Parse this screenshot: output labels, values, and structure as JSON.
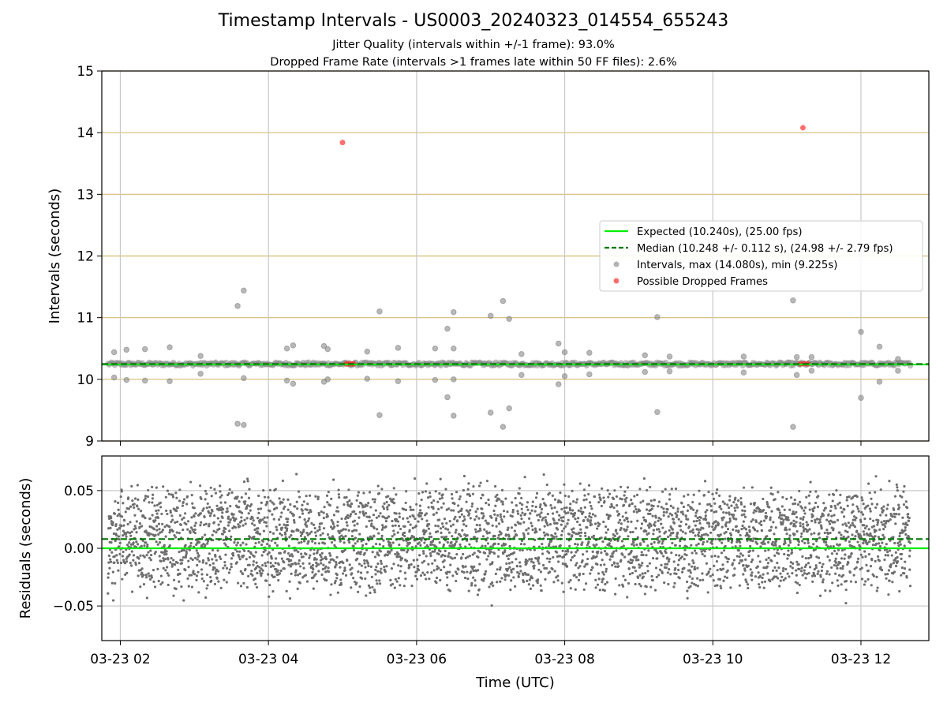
{
  "title": "Timestamp Intervals - US0003_20240323_014554_655243",
  "subtitle_1": "Jitter Quality (intervals within +/-1 frame): 93.0%",
  "subtitle_2": "Dropped Frame Rate (intervals >1 frames late within 50 FF files): 2.6%",
  "colors": {
    "expected": "#00ee00",
    "median": "#007700",
    "intervals": "#888888",
    "dropped": "#ff2222",
    "residual_points": "#6e6e6e",
    "band_grid": "#d4bc70",
    "grid": "#c8c8c8"
  },
  "chart_data": [
    {
      "type": "scatter",
      "panel": "top",
      "ylabel": "Intervals (seconds)",
      "ylim": [
        9,
        15
      ],
      "yticks": [
        "9",
        "10",
        "11",
        "12",
        "13",
        "14",
        "15"
      ],
      "x_range": [
        "2024-03-23 01:45",
        "2024-03-23 12:55"
      ],
      "x_gridlines": [
        "03-23 02",
        "03-23 04",
        "03-23 06",
        "03-23 08",
        "03-23 10",
        "03-23 12"
      ],
      "horizontal_band_lines": [
        9,
        10,
        11,
        12,
        13,
        14,
        15
      ],
      "legend_position": "center-right",
      "lines": [
        {
          "name": "Expected (10.240s), (25.00 fps)",
          "y": 10.24,
          "style": "solid"
        },
        {
          "name": "Median (10.248 +/- 0.112 s), (24.98 +/- 2.79 fps)",
          "y": 10.248,
          "style": "dashed"
        }
      ],
      "series": [
        {
          "name": "Intervals, max (14.080s), min (9.225s)",
          "baseline_band": [
            10.19,
            10.3
          ],
          "outliers": [
            {
              "x": "03-23 01:55",
              "y": 10.44
            },
            {
              "x": "03-23 01:55",
              "y": 10.03
            },
            {
              "x": "03-23 02:05",
              "y": 10.48
            },
            {
              "x": "03-23 02:05",
              "y": 9.99
            },
            {
              "x": "03-23 02:20",
              "y": 10.49
            },
            {
              "x": "03-23 02:20",
              "y": 9.98
            },
            {
              "x": "03-23 02:40",
              "y": 10.52
            },
            {
              "x": "03-23 02:40",
              "y": 9.97
            },
            {
              "x": "03-23 03:05",
              "y": 10.38
            },
            {
              "x": "03-23 03:05",
              "y": 10.09
            },
            {
              "x": "03-23 03:35",
              "y": 11.19
            },
            {
              "x": "03-23 03:35",
              "y": 9.28
            },
            {
              "x": "03-23 03:40",
              "y": 11.44
            },
            {
              "x": "03-23 03:40",
              "y": 9.26
            },
            {
              "x": "03-23 03:40",
              "y": 10.02
            },
            {
              "x": "03-23 04:15",
              "y": 10.5
            },
            {
              "x": "03-23 04:15",
              "y": 9.98
            },
            {
              "x": "03-23 04:20",
              "y": 10.55
            },
            {
              "x": "03-23 04:20",
              "y": 9.93
            },
            {
              "x": "03-23 04:45",
              "y": 10.54
            },
            {
              "x": "03-23 04:45",
              "y": 9.96
            },
            {
              "x": "03-23 04:48",
              "y": 10.49
            },
            {
              "x": "03-23 04:48",
              "y": 10.0
            },
            {
              "x": "03-23 05:20",
              "y": 10.45
            },
            {
              "x": "03-23 05:20",
              "y": 10.01
            },
            {
              "x": "03-23 05:30",
              "y": 11.1
            },
            {
              "x": "03-23 05:30",
              "y": 9.42
            },
            {
              "x": "03-23 05:45",
              "y": 10.51
            },
            {
              "x": "03-23 05:45",
              "y": 9.97
            },
            {
              "x": "03-23 06:15",
              "y": 10.5
            },
            {
              "x": "03-23 06:15",
              "y": 9.99
            },
            {
              "x": "03-23 06:25",
              "y": 10.82
            },
            {
              "x": "03-23 06:25",
              "y": 9.71
            },
            {
              "x": "03-23 06:30",
              "y": 11.09
            },
            {
              "x": "03-23 06:30",
              "y": 9.41
            },
            {
              "x": "03-23 06:30",
              "y": 10.5
            },
            {
              "x": "03-23 06:30",
              "y": 10.0
            },
            {
              "x": "03-23 07:00",
              "y": 11.03
            },
            {
              "x": "03-23 07:00",
              "y": 9.46
            },
            {
              "x": "03-23 07:10",
              "y": 11.27
            },
            {
              "x": "03-23 07:10",
              "y": 9.23
            },
            {
              "x": "03-23 07:15",
              "y": 10.98
            },
            {
              "x": "03-23 07:15",
              "y": 9.53
            },
            {
              "x": "03-23 07:25",
              "y": 10.41
            },
            {
              "x": "03-23 07:25",
              "y": 10.07
            },
            {
              "x": "03-23 07:55",
              "y": 10.58
            },
            {
              "x": "03-23 07:55",
              "y": 9.92
            },
            {
              "x": "03-23 08:00",
              "y": 10.44
            },
            {
              "x": "03-23 08:00",
              "y": 10.05
            },
            {
              "x": "03-23 08:20",
              "y": 10.43
            },
            {
              "x": "03-23 08:20",
              "y": 10.08
            },
            {
              "x": "03-23 09:05",
              "y": 10.39
            },
            {
              "x": "03-23 09:05",
              "y": 10.12
            },
            {
              "x": "03-23 09:15",
              "y": 11.01
            },
            {
              "x": "03-23 09:15",
              "y": 9.47
            },
            {
              "x": "03-23 09:25",
              "y": 10.37
            },
            {
              "x": "03-23 09:25",
              "y": 10.13
            },
            {
              "x": "03-23 10:25",
              "y": 10.37
            },
            {
              "x": "03-23 10:25",
              "y": 10.11
            },
            {
              "x": "03-23 11:05",
              "y": 11.28
            },
            {
              "x": "03-23 11:05",
              "y": 9.23
            },
            {
              "x": "03-23 11:08",
              "y": 10.36
            },
            {
              "x": "03-23 11:08",
              "y": 10.07
            },
            {
              "x": "03-23 11:20",
              "y": 10.36
            },
            {
              "x": "03-23 11:20",
              "y": 10.14
            },
            {
              "x": "03-23 12:00",
              "y": 10.77
            },
            {
              "x": "03-23 12:00",
              "y": 9.7
            },
            {
              "x": "03-23 12:15",
              "y": 10.53
            },
            {
              "x": "03-23 12:15",
              "y": 9.96
            },
            {
              "x": "03-23 12:30",
              "y": 10.33
            },
            {
              "x": "03-23 12:30",
              "y": 10.14
            }
          ]
        },
        {
          "name": "Possible Dropped Frames",
          "points": [
            {
              "x": "03-23 05:00",
              "y": 13.84
            },
            {
              "x": "03-23 05:03",
              "y": 10.25
            },
            {
              "x": "03-23 05:05",
              "y": 10.25
            },
            {
              "x": "03-23 05:07",
              "y": 10.25
            },
            {
              "x": "03-23 05:09",
              "y": 10.25
            },
            {
              "x": "03-23 11:13",
              "y": 14.08
            },
            {
              "x": "03-23 11:11",
              "y": 10.25
            },
            {
              "x": "03-23 11:14",
              "y": 10.25
            },
            {
              "x": "03-23 11:17",
              "y": 10.25
            }
          ]
        }
      ]
    },
    {
      "type": "scatter",
      "panel": "bottom",
      "xlabel": "Time (UTC)",
      "ylabel": "Residuals (seconds)",
      "ylim": [
        -0.08,
        0.08
      ],
      "yticks": [
        "−0.05",
        "0.00",
        "0.05"
      ],
      "xticks": [
        "03-23 02",
        "03-23 04",
        "03-23 06",
        "03-23 08",
        "03-23 10",
        "03-23 12"
      ],
      "grid": true,
      "lines": [
        {
          "name": "Expected",
          "y": 0.0,
          "style": "solid"
        },
        {
          "name": "Median",
          "y": 0.008,
          "style": "dashed"
        }
      ],
      "series": [
        {
          "name": "Residuals",
          "approx_count": 3900,
          "approx_range": [
            -0.051,
            0.068
          ],
          "distribution": "roughly uniform noise centred near 0.008 s",
          "x_span": [
            "03-23 01:50",
            "03-23 12:40"
          ]
        }
      ]
    }
  ]
}
